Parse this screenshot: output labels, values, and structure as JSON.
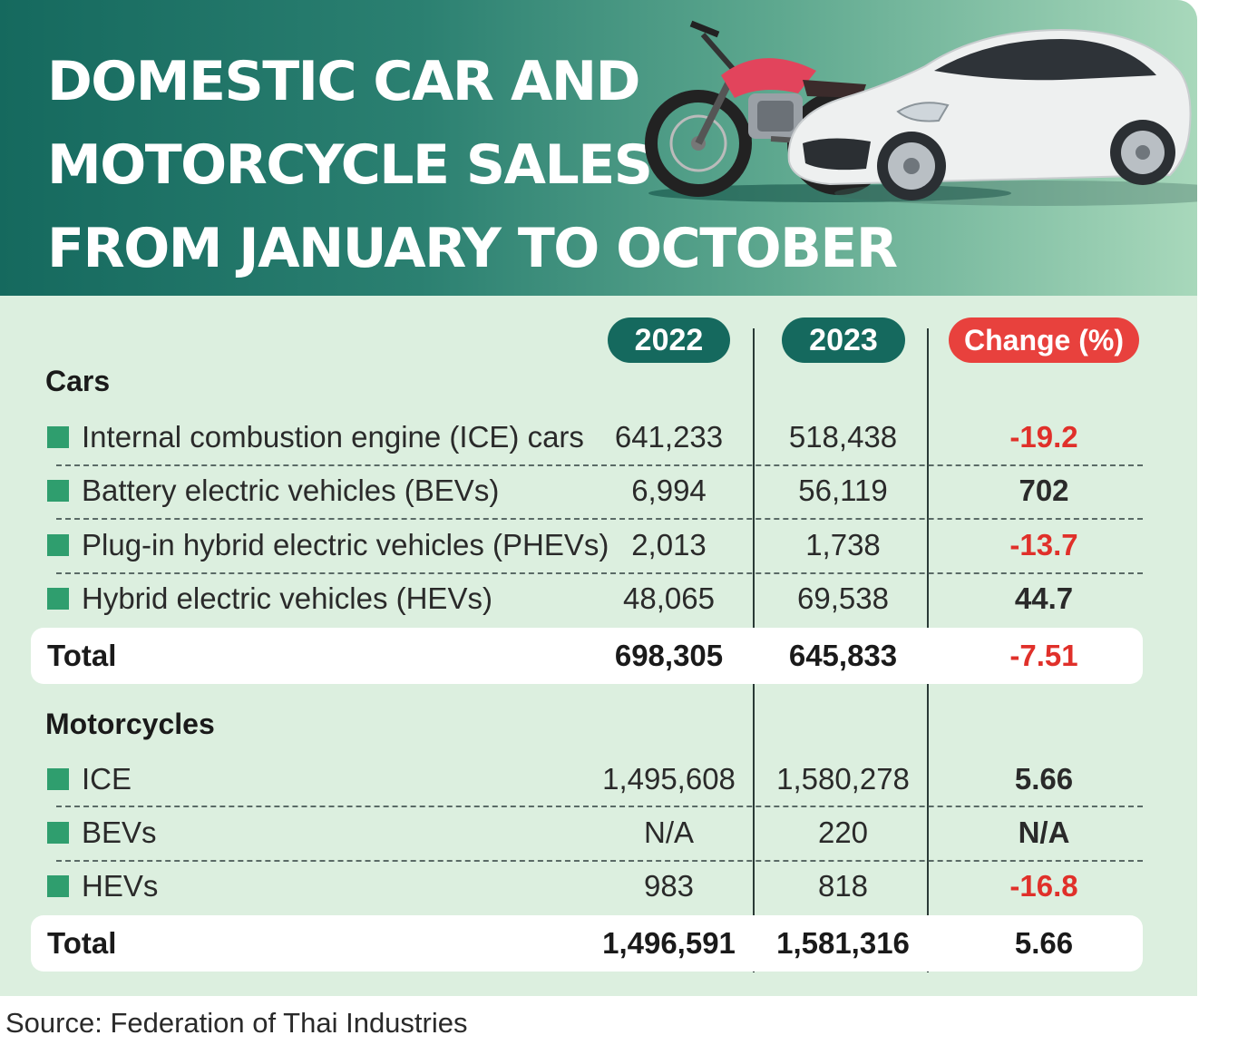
{
  "header": {
    "title_lines": [
      "DOMESTIC CAR AND",
      "MOTORCYCLE SALES",
      "FROM JANUARY TO OCTOBER"
    ]
  },
  "colors": {
    "header_dark": "#15695e",
    "background": "#dcefdf",
    "negative": "#e0302a",
    "change_pill": "#e8413d",
    "bullet": "#2f9e6e"
  },
  "icons": [
    "motorcycle-illustration",
    "sports-car-illustration"
  ],
  "chart_data": {
    "type": "table",
    "columns": [
      "2022",
      "2023",
      "Change (%)"
    ],
    "sections": [
      {
        "name": "Cars",
        "rows": [
          {
            "label": "Internal combustion engine (ICE) cars",
            "v2022": "641,233",
            "v2023": "518,438",
            "change": "-19.2"
          },
          {
            "label": "Battery electric vehicles (BEVs)",
            "v2022": "6,994",
            "v2023": "56,119",
            "change": "702"
          },
          {
            "label": "Plug-in hybrid electric vehicles (PHEVs)",
            "v2022": "2,013",
            "v2023": "1,738",
            "change": "-13.7"
          },
          {
            "label": "Hybrid electric vehicles (HEVs)",
            "v2022": "48,065",
            "v2023": "69,538",
            "change": "44.7"
          }
        ],
        "total": {
          "label": "Total",
          "v2022": "698,305",
          "v2023": "645,833",
          "change": "-7.51"
        }
      },
      {
        "name": "Motorcycles",
        "rows": [
          {
            "label": "ICE",
            "v2022": "1,495,608",
            "v2023": "1,580,278",
            "change": "5.66"
          },
          {
            "label": "BEVs",
            "v2022": "N/A",
            "v2023": "220",
            "change": "N/A"
          },
          {
            "label": "HEVs",
            "v2022": "983",
            "v2023": "818",
            "change": "-16.8"
          }
        ],
        "total": {
          "label": "Total",
          "v2022": "1,496,591",
          "v2023": "1,581,316",
          "change": "5.66"
        }
      }
    ]
  },
  "source": "Source: Federation of Thai Industries"
}
